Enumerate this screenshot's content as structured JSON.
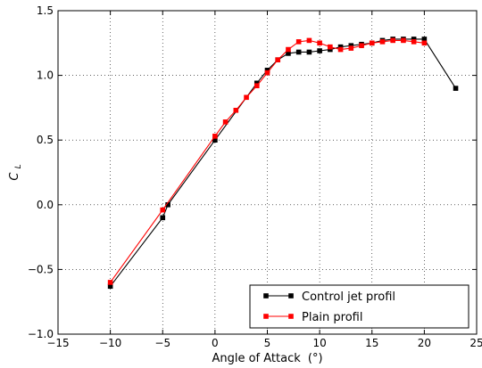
{
  "chart_data": {
    "type": "line",
    "xlabel": "Angle of Attack",
    "xunit": "(°)",
    "ylabel_main": "C",
    "ylabel_sub": "L",
    "xlim": [
      -15,
      25
    ],
    "ylim": [
      -1.0,
      1.5
    ],
    "xticks": [
      -15,
      -10,
      -5,
      0,
      5,
      10,
      15,
      20,
      25
    ],
    "yticks": [
      -1.0,
      -0.5,
      0.0,
      0.5,
      1.0,
      1.5
    ],
    "xtick_labels": [
      "−15",
      "−10",
      "−5",
      "0",
      "5",
      "10",
      "15",
      "20",
      "25"
    ],
    "ytick_labels": [
      "−1.0",
      "−0.5",
      "0.0",
      "0.5",
      "1.0",
      "1.5"
    ],
    "grid": true,
    "legend_position": "bottom-right",
    "series": [
      {
        "name": "Control jet profil",
        "color": "#000000",
        "marker": "square",
        "x": [
          -10,
          -5,
          -4.5,
          0,
          4,
          5,
          6,
          7,
          8,
          9,
          10,
          11,
          12,
          13,
          14,
          15,
          16,
          17,
          18,
          19,
          20,
          23
        ],
        "y": [
          -0.63,
          -0.1,
          0.0,
          0.5,
          0.94,
          1.04,
          1.12,
          1.17,
          1.18,
          1.18,
          1.19,
          1.2,
          1.22,
          1.23,
          1.24,
          1.25,
          1.27,
          1.28,
          1.28,
          1.28,
          1.28,
          0.9
        ]
      },
      {
        "name": "Plain profil",
        "color": "#ff0000",
        "marker": "square",
        "x": [
          -10,
          -5,
          0,
          1,
          2,
          3,
          4,
          5,
          6,
          7,
          8,
          9,
          10,
          11,
          12,
          13,
          14,
          15,
          16,
          17,
          18,
          19,
          20
        ],
        "y": [
          -0.6,
          -0.04,
          0.53,
          0.64,
          0.73,
          0.83,
          0.92,
          1.02,
          1.12,
          1.2,
          1.26,
          1.27,
          1.25,
          1.22,
          1.2,
          1.21,
          1.23,
          1.25,
          1.26,
          1.27,
          1.27,
          1.26,
          1.25
        ]
      }
    ]
  }
}
